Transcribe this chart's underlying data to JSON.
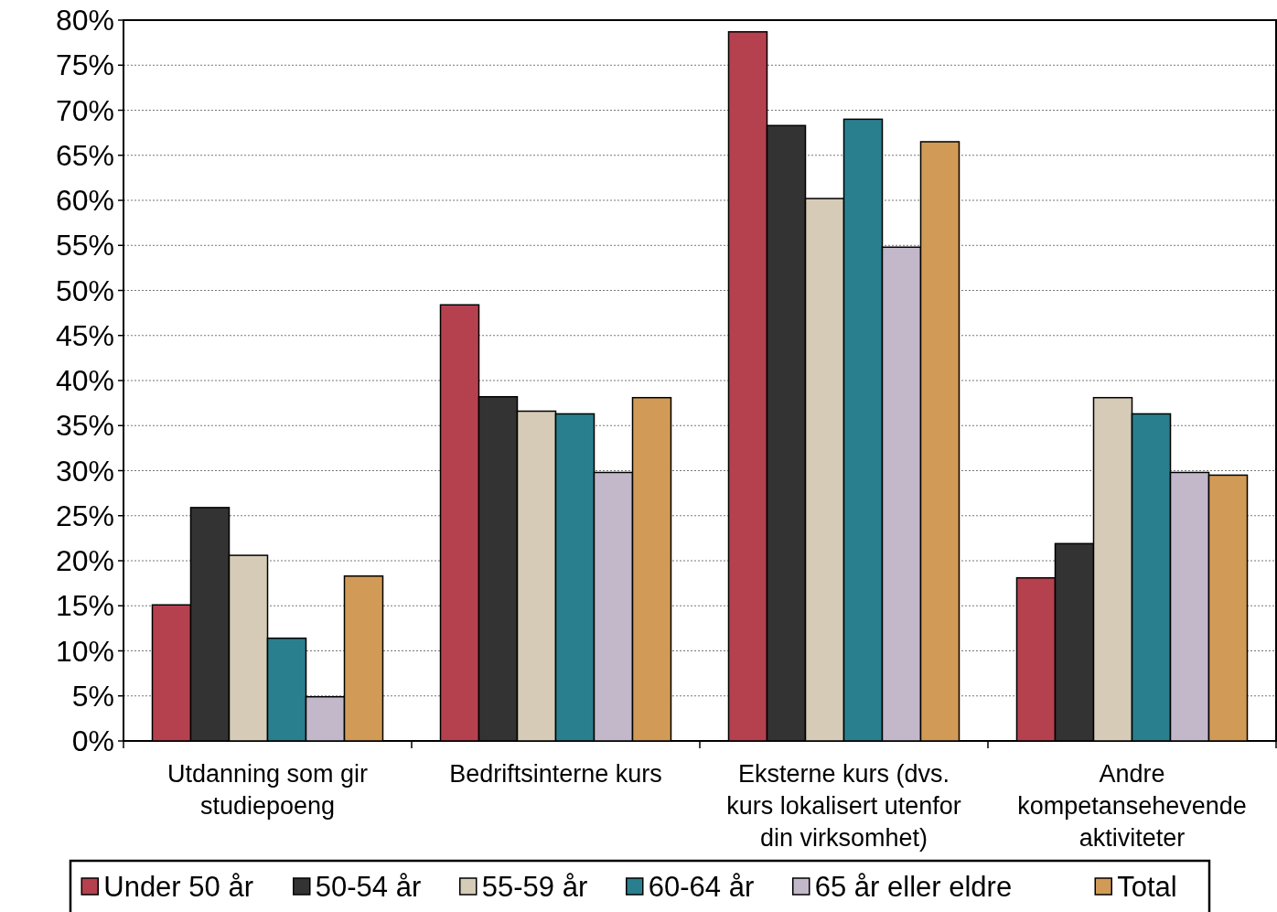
{
  "chart_data": {
    "type": "bar",
    "categories": [
      "Utdanning som gir\nstudiepoeng",
      "Bedriftsinterne kurs",
      "Eksterne kurs (dvs.\nkurs lokalisert utenfor\ndin virksomhet)",
      "Andre\nkompetansehevende\naktiviteter"
    ],
    "series": [
      {
        "name": "Under 50 år",
        "color": "#b5414f",
        "values": [
          15.1,
          48.4,
          78.7,
          18.1
        ]
      },
      {
        "name": "50-54 år",
        "color": "#333333",
        "values": [
          25.9,
          38.2,
          68.3,
          21.9
        ]
      },
      {
        "name": "55-59 år",
        "color": "#d6cbb7",
        "values": [
          20.6,
          36.6,
          60.2,
          38.1
        ]
      },
      {
        "name": "60-64 år",
        "color": "#2a7f8e",
        "values": [
          11.4,
          36.3,
          69.0,
          36.3
        ]
      },
      {
        "name": "65 år eller eldre",
        "color": "#c3b8c9",
        "values": [
          4.9,
          29.8,
          54.8,
          29.8
        ]
      },
      {
        "name": "Total",
        "color": "#d19b57",
        "values": [
          18.3,
          38.1,
          66.5,
          29.5
        ]
      }
    ],
    "ylim": [
      0,
      80
    ],
    "yticks": [
      {
        "value": 0,
        "label": "0%"
      },
      {
        "value": 5,
        "label": "5%"
      },
      {
        "value": 10,
        "label": "10%"
      },
      {
        "value": 15,
        "label": "15%"
      },
      {
        "value": 20,
        "label": "20%"
      },
      {
        "value": 25,
        "label": "25%"
      },
      {
        "value": 30,
        "label": "30%"
      },
      {
        "value": 35,
        "label": "35%"
      },
      {
        "value": 40,
        "label": "40%"
      },
      {
        "value": 45,
        "label": "45%"
      },
      {
        "value": 50,
        "label": "50%"
      },
      {
        "value": 55,
        "label": "55%"
      },
      {
        "value": 60,
        "label": "60%"
      },
      {
        "value": 65,
        "label": "65%"
      },
      {
        "value": 70,
        "label": "70%"
      },
      {
        "value": 75,
        "label": "75%"
      },
      {
        "value": 80,
        "label": "80%"
      }
    ],
    "grid": "y",
    "legend": "bottom"
  }
}
